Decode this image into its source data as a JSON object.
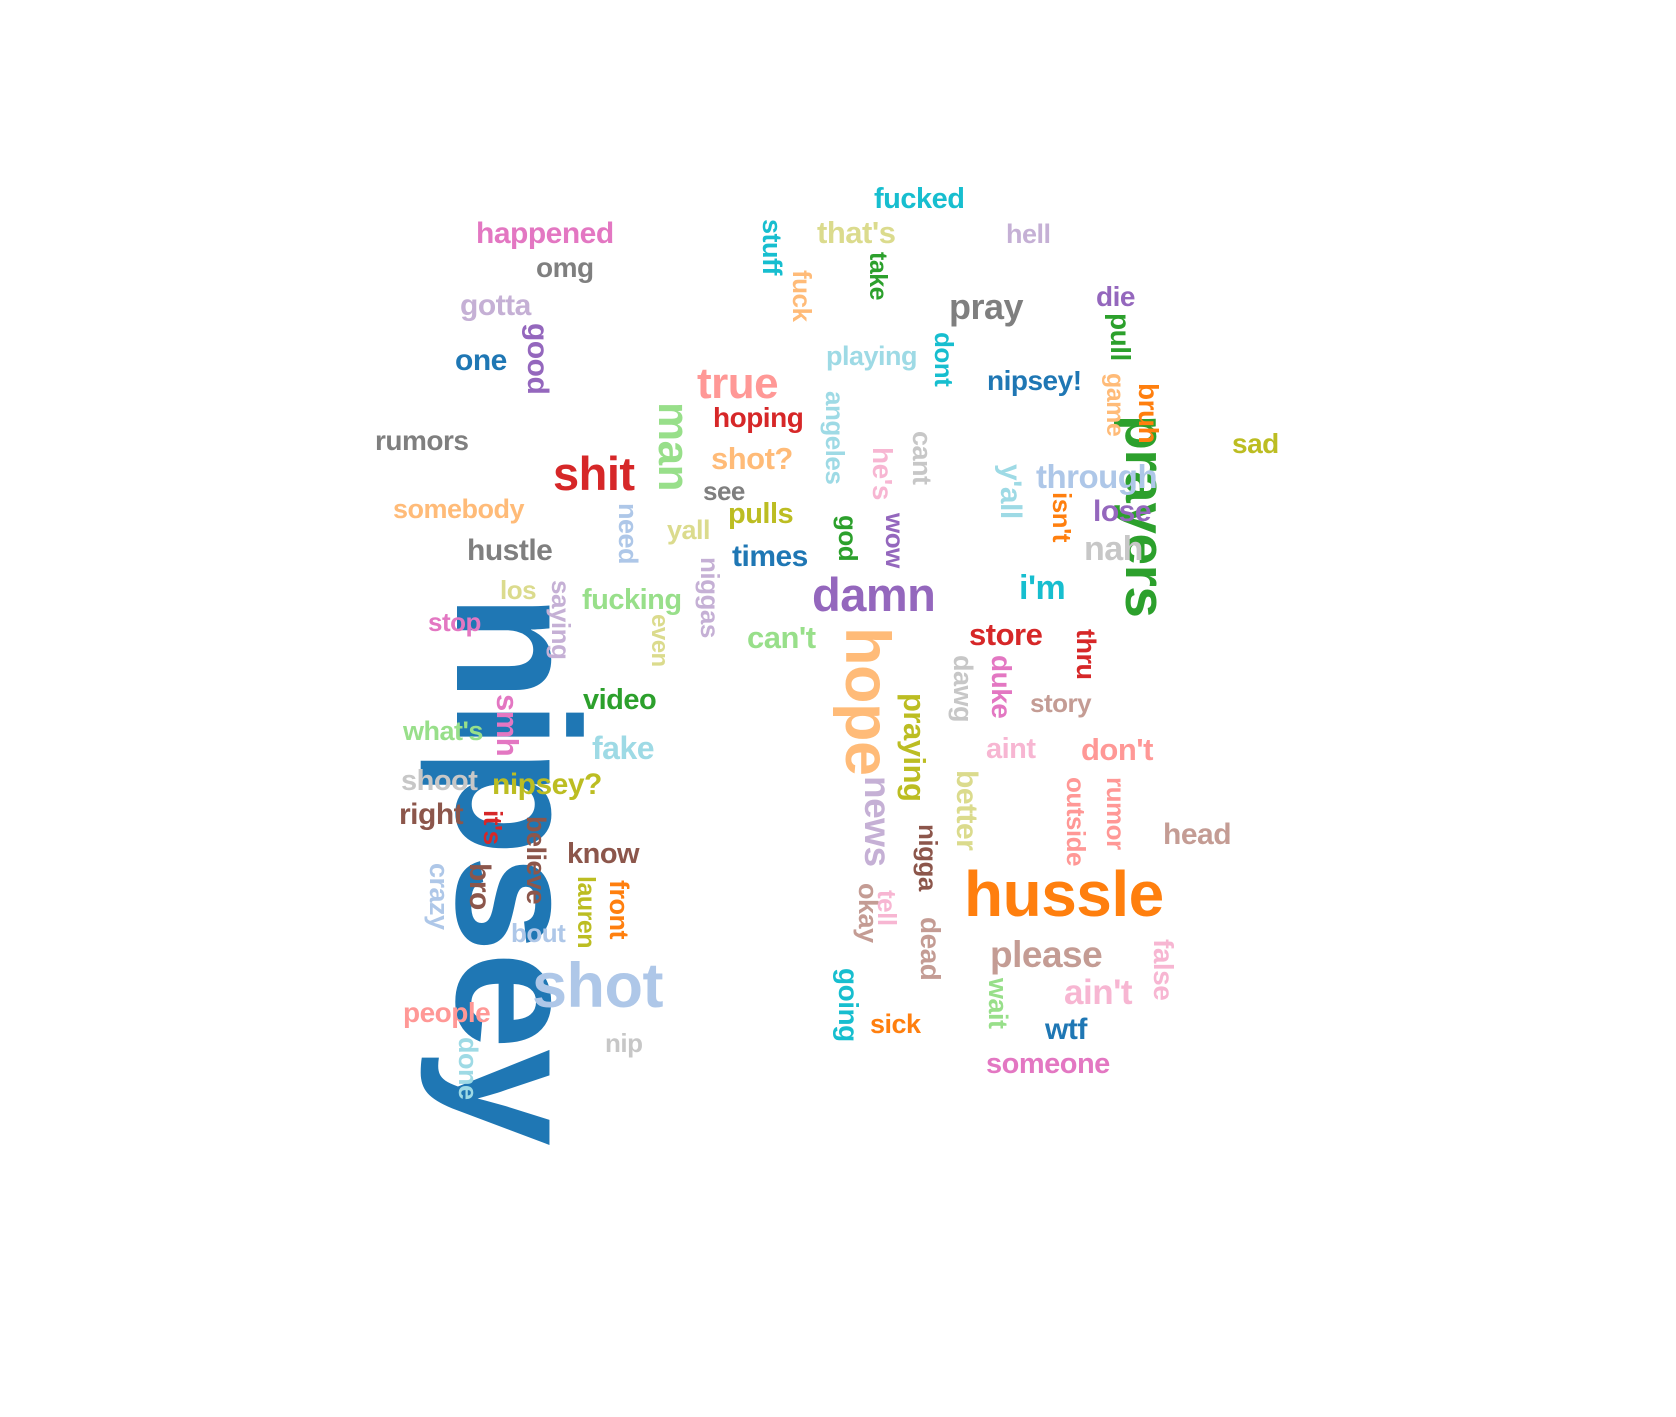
{
  "words": [
    {
      "text": "nipsey",
      "color": "#1f77b4"
    },
    {
      "text": "hussle",
      "color": "#ff7f0e"
    },
    {
      "text": "prayers",
      "color": "#2ca02c"
    },
    {
      "text": "shot",
      "color": "#aec7e8"
    },
    {
      "text": "hope",
      "color": "#ffbb78"
    },
    {
      "text": "damn",
      "color": "#9467bd"
    },
    {
      "text": "shit",
      "color": "#d62728"
    },
    {
      "text": "man",
      "color": "#98df8a"
    },
    {
      "text": "true",
      "color": "#ff9896"
    },
    {
      "text": "please",
      "color": "#c49c94"
    },
    {
      "text": "news",
      "color": "#c5b0d5"
    },
    {
      "text": "pray",
      "color": "#7f7f7f"
    },
    {
      "text": "ain't",
      "color": "#f7b6d2"
    },
    {
      "text": "through",
      "color": "#aec7e8"
    },
    {
      "text": "happened",
      "color": "#e377c2"
    },
    {
      "text": "i'm",
      "color": "#17becf"
    },
    {
      "text": "hustle",
      "color": "#7f7f7f"
    },
    {
      "text": "nah",
      "color": "#c7c7c7"
    },
    {
      "text": "store",
      "color": "#d62728"
    },
    {
      "text": "don't",
      "color": "#ff9896"
    },
    {
      "text": "times",
      "color": "#1f77b4"
    },
    {
      "text": "fake",
      "color": "#9edae5"
    },
    {
      "text": "smh",
      "color": "#e377c2"
    },
    {
      "text": "praying",
      "color": "#bcbd22"
    },
    {
      "text": "nipsey?",
      "color": "#bcbd22"
    },
    {
      "text": "rumors",
      "color": "#7f7f7f"
    },
    {
      "text": "people",
      "color": "#ff9896"
    },
    {
      "text": "lose",
      "color": "#9467bd"
    },
    {
      "text": "can't",
      "color": "#98df8a"
    },
    {
      "text": "know",
      "color": "#8c564b"
    },
    {
      "text": "better",
      "color": "#dbdb8d"
    },
    {
      "text": "pulls",
      "color": "#bcbd22"
    },
    {
      "text": "video",
      "color": "#2ca02c"
    },
    {
      "text": "fucking",
      "color": "#98df8a"
    },
    {
      "text": "shoot",
      "color": "#c7c7c7"
    },
    {
      "text": "nipsey!",
      "color": "#1f77b4"
    },
    {
      "text": "hoping",
      "color": "#d62728"
    },
    {
      "text": "shot?",
      "color": "#ffbb78"
    },
    {
      "text": "fucked",
      "color": "#17becf"
    },
    {
      "text": "somebody",
      "color": "#ffbb78"
    },
    {
      "text": "nigga",
      "color": "#8c564b"
    },
    {
      "text": "right",
      "color": "#8c564b"
    },
    {
      "text": "someone",
      "color": "#e377c2"
    },
    {
      "text": "head",
      "color": "#c49c94"
    },
    {
      "text": "wtf",
      "color": "#1f77b4"
    },
    {
      "text": "bro",
      "color": "#8c564b"
    },
    {
      "text": "that's",
      "color": "#dbdb8d"
    },
    {
      "text": "playing",
      "color": "#9edae5"
    },
    {
      "text": "angeles",
      "color": "#9edae5"
    },
    {
      "text": "pull",
      "color": "#2ca02c"
    },
    {
      "text": "bruh",
      "color": "#ff7f0e"
    },
    {
      "text": "story",
      "color": "#c49c94"
    },
    {
      "text": "what's",
      "color": "#98df8a"
    },
    {
      "text": "aint",
      "color": "#f7b6d2"
    },
    {
      "text": "outside",
      "color": "#ff9896"
    },
    {
      "text": "rumor",
      "color": "#ff9896"
    },
    {
      "text": "gotta",
      "color": "#c5b0d5"
    },
    {
      "text": "niggas",
      "color": "#c5b0d5"
    },
    {
      "text": "saying",
      "color": "#c5b0d5"
    },
    {
      "text": "dead",
      "color": "#c49c94"
    },
    {
      "text": "okay",
      "color": "#c49c94"
    },
    {
      "text": "isn't",
      "color": "#ff7f0e"
    },
    {
      "text": "y'all",
      "color": "#9edae5"
    },
    {
      "text": "good",
      "color": "#9467bd"
    },
    {
      "text": "one",
      "color": "#1f77b4"
    },
    {
      "text": "omg",
      "color": "#7f7f7f"
    },
    {
      "text": "sick",
      "color": "#ff7f0e"
    },
    {
      "text": "going",
      "color": "#17becf"
    },
    {
      "text": "believe",
      "color": "#8c564b"
    },
    {
      "text": "front",
      "color": "#ff7f0e"
    },
    {
      "text": "lauren",
      "color": "#bcbd22"
    },
    {
      "text": "need",
      "color": "#aec7e8"
    },
    {
      "text": "game",
      "color": "#ffbb78"
    },
    {
      "text": "dawg",
      "color": "#c7c7c7"
    },
    {
      "text": "duke",
      "color": "#e377c2"
    },
    {
      "text": "thru",
      "color": "#d62728"
    },
    {
      "text": "false",
      "color": "#f7b6d2"
    },
    {
      "text": "wait",
      "color": "#98df8a"
    },
    {
      "text": "tell",
      "color": "#f7b6d2"
    },
    {
      "text": "bout",
      "color": "#aec7e8"
    },
    {
      "text": "it's",
      "color": "#d62728"
    },
    {
      "text": "crazy",
      "color": "#aec7e8"
    },
    {
      "text": "done",
      "color": "#9edae5"
    },
    {
      "text": "nip",
      "color": "#c7c7c7"
    },
    {
      "text": "stop",
      "color": "#e377c2"
    },
    {
      "text": "los",
      "color": "#dbdb8d"
    },
    {
      "text": "even",
      "color": "#dbdb8d"
    },
    {
      "text": "yall",
      "color": "#dbdb8d"
    },
    {
      "text": "see",
      "color": "#7f7f7f"
    },
    {
      "text": "god",
      "color": "#2ca02c"
    },
    {
      "text": "wow",
      "color": "#9467bd"
    },
    {
      "text": "he's",
      "color": "#f7b6d2"
    },
    {
      "text": "cant",
      "color": "#c7c7c7"
    },
    {
      "text": "dont",
      "color": "#17becf"
    },
    {
      "text": "stuff",
      "color": "#17becf"
    },
    {
      "text": "fuck",
      "color": "#ffbb78"
    },
    {
      "text": "take",
      "color": "#2ca02c"
    },
    {
      "text": "hell",
      "color": "#c5b0d5"
    },
    {
      "text": "die",
      "color": "#9467bd"
    },
    {
      "text": "sad",
      "color": "#bcbd22"
    }
  ]
}
